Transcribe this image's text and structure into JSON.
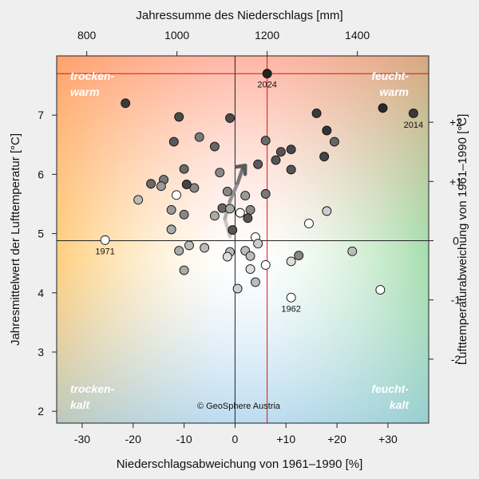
{
  "chart_data": {
    "type": "scatter",
    "title": "",
    "xlabel_bottom": "Niederschlagsabweichung von 1961–1990 [%]",
    "xlabel_top": "Jahressumme des Niederschlags [mm]",
    "ylabel_left": "Jahresmittelwert der Lufttemperatur [°C]",
    "ylabel_right": "Lufttemperaturabweichung von 1961–1990 [°C]",
    "xlim": [
      -35,
      38
    ],
    "ylim": [
      1.8,
      8.0
    ],
    "x_ticks_bottom": [
      {
        "v": -30,
        "label": "-30"
      },
      {
        "v": -20,
        "label": "-20"
      },
      {
        "v": -10,
        "label": "-10"
      },
      {
        "v": 0,
        "label": "0"
      },
      {
        "v": 10,
        "label": "+10"
      },
      {
        "v": 20,
        "label": "+20"
      },
      {
        "v": 30,
        "label": "+30"
      }
    ],
    "x_ticks_top": [
      {
        "v": -29.1,
        "label": "800"
      },
      {
        "v": -11.4,
        "label": "1000"
      },
      {
        "v": 6.3,
        "label": "1200"
      },
      {
        "v": 24.0,
        "label": "1400"
      }
    ],
    "y_ticks_left": [
      {
        "v": 2,
        "label": "2"
      },
      {
        "v": 3,
        "label": "3"
      },
      {
        "v": 4,
        "label": "4"
      },
      {
        "v": 5,
        "label": "5"
      },
      {
        "v": 6,
        "label": "6"
      },
      {
        "v": 7,
        "label": "7"
      }
    ],
    "y_ticks_right": [
      {
        "v": 2.88,
        "label": "-2"
      },
      {
        "v": 3.88,
        "label": "-1"
      },
      {
        "v": 4.88,
        "label": "0"
      },
      {
        "v": 5.88,
        "label": "+1"
      },
      {
        "v": 6.88,
        "label": "+2"
      }
    ],
    "reference_lines": {
      "x_zero": 0,
      "y_baseline": 4.88
    },
    "highlight": {
      "x": 6.3,
      "y": 7.7,
      "label": "2024",
      "color": "#dd1111"
    },
    "points": [
      {
        "x": -21.5,
        "y": 7.2,
        "shade": "#3a3a3a"
      },
      {
        "x": -11,
        "y": 6.97,
        "shade": "#4a4a4a"
      },
      {
        "x": -1,
        "y": 6.95,
        "shade": "#4a4a4a"
      },
      {
        "x": 16,
        "y": 7.03,
        "shade": "#3a3a3a"
      },
      {
        "x": 18,
        "y": 6.74,
        "shade": "#333333"
      },
      {
        "x": 29,
        "y": 7.12,
        "shade": "#2a2a2a"
      },
      {
        "x": 35,
        "y": 7.03,
        "shade": "#3a3a3a",
        "label": "2014"
      },
      {
        "x": -12,
        "y": 6.55,
        "shade": "#5a5a5a"
      },
      {
        "x": -7,
        "y": 6.63,
        "shade": "#7a7a7a"
      },
      {
        "x": -4,
        "y": 6.47,
        "shade": "#666666"
      },
      {
        "x": 6,
        "y": 6.57,
        "shade": "#6a6a6a"
      },
      {
        "x": 9,
        "y": 6.38,
        "shade": "#555555"
      },
      {
        "x": 11,
        "y": 6.42,
        "shade": "#484848"
      },
      {
        "x": 17.5,
        "y": 6.3,
        "shade": "#444444"
      },
      {
        "x": 19.5,
        "y": 6.55,
        "shade": "#666666"
      },
      {
        "x": 8,
        "y": 6.24,
        "shade": "#555555"
      },
      {
        "x": 11,
        "y": 6.08,
        "shade": "#555555"
      },
      {
        "x": 4.5,
        "y": 6.17,
        "shade": "#5a5a5a"
      },
      {
        "x": -10,
        "y": 6.09,
        "shade": "#6a6a6a"
      },
      {
        "x": -3,
        "y": 6.03,
        "shade": "#888888"
      },
      {
        "x": -16.5,
        "y": 5.84,
        "shade": "#6a6a6a"
      },
      {
        "x": -14,
        "y": 5.91,
        "shade": "#7a7a7a"
      },
      {
        "x": -14.5,
        "y": 5.8,
        "shade": "#999999"
      },
      {
        "x": -8,
        "y": 5.77,
        "shade": "#888888"
      },
      {
        "x": -19,
        "y": 5.57,
        "shade": "#bbbbbb"
      },
      {
        "x": -9.5,
        "y": 5.83,
        "shade": "#444444"
      },
      {
        "x": -1.5,
        "y": 5.71,
        "shade": "#888888"
      },
      {
        "x": 2,
        "y": 5.64,
        "shade": "#999999"
      },
      {
        "x": 6,
        "y": 5.67,
        "shade": "#777777"
      },
      {
        "x": -11.5,
        "y": 5.65,
        "shade": "#ffffff"
      },
      {
        "x": -12.5,
        "y": 5.4,
        "shade": "#999999"
      },
      {
        "x": -10,
        "y": 5.32,
        "shade": "#888888"
      },
      {
        "x": -4,
        "y": 5.3,
        "shade": "#aaaaaa"
      },
      {
        "x": -2.5,
        "y": 5.43,
        "shade": "#666666"
      },
      {
        "x": -1,
        "y": 5.42,
        "shade": "#aaaaaa"
      },
      {
        "x": 1,
        "y": 5.35,
        "shade": "#ffffff"
      },
      {
        "x": 3,
        "y": 5.4,
        "shade": "#8a8a8a"
      },
      {
        "x": 2.5,
        "y": 5.26,
        "shade": "#555555"
      },
      {
        "x": 14.5,
        "y": 5.17,
        "shade": "#ffffff"
      },
      {
        "x": 18,
        "y": 5.38,
        "shade": "#cccccc"
      },
      {
        "x": -12.5,
        "y": 5.07,
        "shade": "#aaaaaa"
      },
      {
        "x": -0.5,
        "y": 5.06,
        "shade": "#555555"
      },
      {
        "x": 4,
        "y": 4.94,
        "shade": "#ffffff"
      },
      {
        "x": 4.5,
        "y": 4.83,
        "shade": "#cccccc"
      },
      {
        "x": -25.5,
        "y": 4.89,
        "shade": "#ffffff",
        "label": "1971"
      },
      {
        "x": -9,
        "y": 4.8,
        "shade": "#bbbbbb"
      },
      {
        "x": -6,
        "y": 4.76,
        "shade": "#bbbbbb"
      },
      {
        "x": -11,
        "y": 4.71,
        "shade": "#aaaaaa"
      },
      {
        "x": -1,
        "y": 4.69,
        "shade": "#bbbbbb"
      },
      {
        "x": -1.5,
        "y": 4.61,
        "shade": "#dddddd"
      },
      {
        "x": 2,
        "y": 4.71,
        "shade": "#bbbbbb"
      },
      {
        "x": 3,
        "y": 4.62,
        "shade": "#bbbbbb"
      },
      {
        "x": 6,
        "y": 4.47,
        "shade": "#ffffff"
      },
      {
        "x": 11,
        "y": 4.53,
        "shade": "#dddddd"
      },
      {
        "x": 12.5,
        "y": 4.63,
        "shade": "#888888"
      },
      {
        "x": 23,
        "y": 4.7,
        "shade": "#bbbbbb"
      },
      {
        "x": -10,
        "y": 4.38,
        "shade": "#aaaaaa"
      },
      {
        "x": 3,
        "y": 4.4,
        "shade": "#dddddd"
      },
      {
        "x": 4,
        "y": 4.18,
        "shade": "#bbbbbb"
      },
      {
        "x": 0.5,
        "y": 4.07,
        "shade": "#cccccc"
      },
      {
        "x": 11,
        "y": 3.92,
        "shade": "#ffffff",
        "label": "1962"
      },
      {
        "x": 28.5,
        "y": 4.05,
        "shade": "#ffffff"
      }
    ],
    "trend_path": [
      {
        "x": -1,
        "y": 4.95
      },
      {
        "x": -2,
        "y": 5.25
      },
      {
        "x": -1,
        "y": 5.55
      },
      {
        "x": 0.5,
        "y": 5.85
      },
      {
        "x": 1.5,
        "y": 6.1
      },
      {
        "x": 2,
        "y": 6.15
      }
    ],
    "corner_labels": {
      "top_left": [
        "trocken-",
        "warm"
      ],
      "top_right": [
        "feucht-",
        "warm"
      ],
      "bottom_left": [
        "trocken-",
        "kalt"
      ],
      "bottom_right": [
        "feucht-",
        "kalt"
      ]
    },
    "copyright": "© GeoSphere Austria"
  }
}
